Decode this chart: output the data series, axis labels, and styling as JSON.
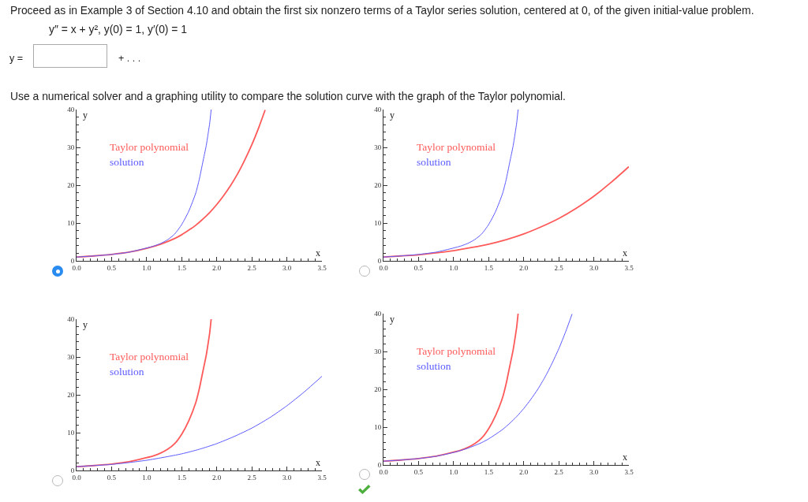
{
  "chart_data": [
    {
      "type": "other",
      "title": "Proceed as in Example 3 of Section 4.10 and obtain the first six nonzero terms of a Taylor series solution, centered at 0, of the given initial-value problem.",
      "annotations": [
        "y″ = x + y², y(0) = 1, y′(0) = 1",
        "y =",
        "+ . . .",
        "Use a numerical solver and a graphing utility to compare the solution curve with the graph of the Taylor polynomial."
      ]
    },
    {
      "type": "line",
      "xlabel": "x",
      "ylabel": "y",
      "legend": "top left",
      "xlim": [
        0,
        3.5
      ],
      "ylim": [
        0,
        40
      ],
      "xticks": [
        {
          "value": 0,
          "label": "0.0"
        },
        {
          "value": 0.1,
          "label": null
        },
        {
          "value": 0.2,
          "label": null
        },
        {
          "value": 0.3,
          "label": null
        },
        {
          "value": 0.4,
          "label": null
        },
        {
          "value": 0.5,
          "label": "0.5"
        },
        {
          "value": 0.6,
          "label": null
        },
        {
          "value": 0.7,
          "label": null
        },
        {
          "value": 0.8,
          "label": null
        },
        {
          "value": 0.9,
          "label": null
        },
        {
          "value": 1,
          "label": "1.0"
        },
        {
          "value": 1.1,
          "label": null
        },
        {
          "value": 1.2,
          "label": null
        },
        {
          "value": 1.3,
          "label": null
        },
        {
          "value": 1.4,
          "label": null
        },
        {
          "value": 1.5,
          "label": "1.5"
        },
        {
          "value": 1.6,
          "label": null
        },
        {
          "value": 1.7,
          "label": null
        },
        {
          "value": 1.8,
          "label": null
        },
        {
          "value": 1.9,
          "label": null
        },
        {
          "value": 2,
          "label": "2.0"
        },
        {
          "value": 2.1,
          "label": null
        },
        {
          "value": 2.2,
          "label": null
        },
        {
          "value": 2.3,
          "label": null
        },
        {
          "value": 2.4,
          "label": null
        },
        {
          "value": 2.5,
          "label": "2.5"
        },
        {
          "value": 2.6,
          "label": null
        },
        {
          "value": 2.7,
          "label": null
        },
        {
          "value": 2.8,
          "label": null
        },
        {
          "value": 2.9,
          "label": null
        },
        {
          "value": 3,
          "label": "3.0"
        },
        {
          "value": 3.1,
          "label": null
        },
        {
          "value": 3.2,
          "label": null
        },
        {
          "value": 3.3,
          "label": null
        },
        {
          "value": 3.4,
          "label": null
        },
        {
          "value": 3.5,
          "label": "3.5"
        }
      ],
      "yticks": [
        0,
        {
          "value": 2,
          "label": null
        },
        {
          "value": 4,
          "label": null
        },
        {
          "value": 6,
          "label": null
        },
        {
          "value": 8,
          "label": null
        },
        10,
        {
          "value": 12,
          "label": null
        },
        {
          "value": 14,
          "label": null
        },
        {
          "value": 16,
          "label": null
        },
        {
          "value": 18,
          "label": null
        },
        20,
        {
          "value": 22,
          "label": null
        },
        {
          "value": 24,
          "label": null
        },
        {
          "value": 26,
          "label": null
        },
        {
          "value": 28,
          "label": null
        },
        30,
        {
          "value": 32,
          "label": null
        },
        {
          "value": 34,
          "label": null
        },
        {
          "value": 36,
          "label": null
        },
        {
          "value": 38,
          "label": null
        },
        40
      ],
      "series": [
        {
          "name": "Taylor polynomial",
          "color": "#ff5a5a",
          "x": [
            0,
            0.25,
            0.5,
            0.75,
            1,
            1.2,
            1.4,
            1.5,
            1.6,
            1.7,
            1.8,
            1.9,
            2,
            2.1,
            2.2,
            2.3,
            2.4,
            2.5,
            2.6,
            2.69
          ],
          "values": [
            1,
            1.3,
            1.7,
            2.3,
            3.3,
            4.4,
            5.9,
            6.9,
            8.1,
            9.4,
            11,
            12.8,
            14.9,
            17.3,
            20,
            23.1,
            26.7,
            30.7,
            35.3,
            39.9
          ]
        },
        {
          "name": "solution",
          "color": "#5a5aff",
          "x": [
            0,
            0.25,
            0.5,
            0.75,
            1,
            1.1,
            1.2,
            1.3,
            1.4,
            1.5,
            1.6,
            1.7,
            1.75,
            1.8,
            1.85,
            1.88,
            1.9,
            1.92
          ],
          "values": [
            1,
            1.3,
            1.7,
            2.3,
            3.4,
            3.9,
            4.6,
            5.6,
            7.1,
            9.6,
            13.1,
            17.9,
            21.5,
            26,
            30.5,
            34,
            36.5,
            40
          ]
        }
      ]
    },
    {
      "type": "line",
      "xlabel": "x",
      "ylabel": "y",
      "legend": "top left",
      "xlim": [
        0,
        3.5
      ],
      "ylim": [
        0,
        40
      ],
      "xticks": [
        {
          "value": 0,
          "label": "0.0"
        },
        {
          "value": 0.1,
          "label": null
        },
        {
          "value": 0.2,
          "label": null
        },
        {
          "value": 0.3,
          "label": null
        },
        {
          "value": 0.4,
          "label": null
        },
        {
          "value": 0.5,
          "label": "0.5"
        },
        {
          "value": 0.6,
          "label": null
        },
        {
          "value": 0.7,
          "label": null
        },
        {
          "value": 0.8,
          "label": null
        },
        {
          "value": 0.9,
          "label": null
        },
        {
          "value": 1,
          "label": "1.0"
        },
        {
          "value": 1.1,
          "label": null
        },
        {
          "value": 1.2,
          "label": null
        },
        {
          "value": 1.3,
          "label": null
        },
        {
          "value": 1.4,
          "label": null
        },
        {
          "value": 1.5,
          "label": "1.5"
        },
        {
          "value": 1.6,
          "label": null
        },
        {
          "value": 1.7,
          "label": null
        },
        {
          "value": 1.8,
          "label": null
        },
        {
          "value": 1.9,
          "label": null
        },
        {
          "value": 2,
          "label": "2.0"
        },
        {
          "value": 2.1,
          "label": null
        },
        {
          "value": 2.2,
          "label": null
        },
        {
          "value": 2.3,
          "label": null
        },
        {
          "value": 2.4,
          "label": null
        },
        {
          "value": 2.5,
          "label": "2.5"
        },
        {
          "value": 2.6,
          "label": null
        },
        {
          "value": 2.7,
          "label": null
        },
        {
          "value": 2.8,
          "label": null
        },
        {
          "value": 2.9,
          "label": null
        },
        {
          "value": 3,
          "label": "3.0"
        },
        {
          "value": 3.1,
          "label": null
        },
        {
          "value": 3.2,
          "label": null
        },
        {
          "value": 3.3,
          "label": null
        },
        {
          "value": 3.4,
          "label": null
        },
        {
          "value": 3.5,
          "label": "3.5"
        }
      ],
      "yticks": [
        0,
        {
          "value": 2,
          "label": null
        },
        {
          "value": 4,
          "label": null
        },
        {
          "value": 6,
          "label": null
        },
        {
          "value": 8,
          "label": null
        },
        10,
        {
          "value": 12,
          "label": null
        },
        {
          "value": 14,
          "label": null
        },
        {
          "value": 16,
          "label": null
        },
        {
          "value": 18,
          "label": null
        },
        20,
        {
          "value": 22,
          "label": null
        },
        {
          "value": 24,
          "label": null
        },
        {
          "value": 26,
          "label": null
        },
        {
          "value": 28,
          "label": null
        },
        30,
        {
          "value": 32,
          "label": null
        },
        {
          "value": 34,
          "label": null
        },
        {
          "value": 36,
          "label": null
        },
        {
          "value": 38,
          "label": null
        },
        40
      ],
      "series": [
        {
          "name": "Taylor polynomial",
          "color": "#ff5a5a",
          "x": [
            0,
            0.25,
            0.5,
            0.75,
            1,
            1.25,
            1.5,
            1.75,
            2,
            2.25,
            2.5,
            2.75,
            3,
            3.25,
            3.5
          ],
          "values": [
            1,
            1.3,
            1.6,
            2.1,
            2.7,
            3.5,
            4.4,
            5.6,
            7.1,
            9,
            11.2,
            13.9,
            17.1,
            20.8,
            24.9
          ]
        },
        {
          "name": "solution",
          "color": "#5a5aff",
          "x": [
            0,
            0.25,
            0.5,
            0.75,
            1,
            1.1,
            1.2,
            1.3,
            1.4,
            1.5,
            1.6,
            1.7,
            1.75,
            1.8,
            1.85,
            1.88,
            1.9,
            1.92
          ],
          "values": [
            1,
            1.3,
            1.7,
            2.3,
            3.4,
            3.9,
            4.6,
            5.6,
            7.1,
            9.6,
            13.1,
            17.9,
            21.5,
            26,
            30.5,
            34,
            36.5,
            40
          ]
        }
      ]
    },
    {
      "type": "line",
      "xlabel": "x",
      "ylabel": "y",
      "legend": "top left",
      "xlim": [
        0,
        3.5
      ],
      "ylim": [
        0,
        40
      ],
      "xticks": [
        {
          "value": 0,
          "label": "0.0"
        },
        {
          "value": 0.1,
          "label": null
        },
        {
          "value": 0.2,
          "label": null
        },
        {
          "value": 0.3,
          "label": null
        },
        {
          "value": 0.4,
          "label": null
        },
        {
          "value": 0.5,
          "label": "0.5"
        },
        {
          "value": 0.6,
          "label": null
        },
        {
          "value": 0.7,
          "label": null
        },
        {
          "value": 0.8,
          "label": null
        },
        {
          "value": 0.9,
          "label": null
        },
        {
          "value": 1,
          "label": "1.0"
        },
        {
          "value": 1.1,
          "label": null
        },
        {
          "value": 1.2,
          "label": null
        },
        {
          "value": 1.3,
          "label": null
        },
        {
          "value": 1.4,
          "label": null
        },
        {
          "value": 1.5,
          "label": "1.5"
        },
        {
          "value": 1.6,
          "label": null
        },
        {
          "value": 1.7,
          "label": null
        },
        {
          "value": 1.8,
          "label": null
        },
        {
          "value": 1.9,
          "label": null
        },
        {
          "value": 2,
          "label": "2.0"
        },
        {
          "value": 2.1,
          "label": null
        },
        {
          "value": 2.2,
          "label": null
        },
        {
          "value": 2.3,
          "label": null
        },
        {
          "value": 2.4,
          "label": null
        },
        {
          "value": 2.5,
          "label": "2.5"
        },
        {
          "value": 2.6,
          "label": null
        },
        {
          "value": 2.7,
          "label": null
        },
        {
          "value": 2.8,
          "label": null
        },
        {
          "value": 2.9,
          "label": null
        },
        {
          "value": 3,
          "label": "3.0"
        },
        {
          "value": 3.1,
          "label": null
        },
        {
          "value": 3.2,
          "label": null
        },
        {
          "value": 3.3,
          "label": null
        },
        {
          "value": 3.4,
          "label": null
        },
        {
          "value": 3.5,
          "label": "3.5"
        }
      ],
      "yticks": [
        0,
        {
          "value": 2,
          "label": null
        },
        {
          "value": 4,
          "label": null
        },
        {
          "value": 6,
          "label": null
        },
        {
          "value": 8,
          "label": null
        },
        10,
        {
          "value": 12,
          "label": null
        },
        {
          "value": 14,
          "label": null
        },
        {
          "value": 16,
          "label": null
        },
        {
          "value": 18,
          "label": null
        },
        20,
        {
          "value": 22,
          "label": null
        },
        {
          "value": 24,
          "label": null
        },
        {
          "value": 26,
          "label": null
        },
        {
          "value": 28,
          "label": null
        },
        30,
        {
          "value": 32,
          "label": null
        },
        {
          "value": 34,
          "label": null
        },
        {
          "value": 36,
          "label": null
        },
        {
          "value": 38,
          "label": null
        },
        40
      ],
      "series": [
        {
          "name": "Taylor polynomial",
          "color": "#ff5a5a",
          "x": [
            0,
            0.25,
            0.5,
            0.75,
            1,
            1.1,
            1.2,
            1.3,
            1.4,
            1.5,
            1.6,
            1.7,
            1.75,
            1.8,
            1.85,
            1.88,
            1.9,
            1.92
          ],
          "values": [
            1,
            1.3,
            1.7,
            2.3,
            3.4,
            3.9,
            4.6,
            5.6,
            7.1,
            9.6,
            13.1,
            17.9,
            21.5,
            26,
            30.5,
            34,
            36.5,
            40
          ]
        },
        {
          "name": "solution",
          "color": "#5a5aff",
          "x": [
            0,
            0.25,
            0.5,
            0.75,
            1,
            1.25,
            1.5,
            1.75,
            2,
            2.25,
            2.5,
            2.75,
            3,
            3.25,
            3.5
          ],
          "values": [
            1,
            1.3,
            1.6,
            2.1,
            2.7,
            3.5,
            4.4,
            5.6,
            7.1,
            9,
            11.2,
            13.9,
            17.1,
            20.8,
            24.9
          ]
        }
      ]
    },
    {
      "type": "line",
      "xlabel": "x",
      "ylabel": "y",
      "legend": "top left",
      "xlim": [
        0,
        3.5
      ],
      "ylim": [
        0,
        40
      ],
      "xticks": [
        {
          "value": 0,
          "label": "0.0"
        },
        {
          "value": 0.1,
          "label": null
        },
        {
          "value": 0.2,
          "label": null
        },
        {
          "value": 0.3,
          "label": null
        },
        {
          "value": 0.4,
          "label": null
        },
        {
          "value": 0.5,
          "label": "0.5"
        },
        {
          "value": 0.6,
          "label": null
        },
        {
          "value": 0.7,
          "label": null
        },
        {
          "value": 0.8,
          "label": null
        },
        {
          "value": 0.9,
          "label": null
        },
        {
          "value": 1,
          "label": "1.0"
        },
        {
          "value": 1.1,
          "label": null
        },
        {
          "value": 1.2,
          "label": null
        },
        {
          "value": 1.3,
          "label": null
        },
        {
          "value": 1.4,
          "label": null
        },
        {
          "value": 1.5,
          "label": "1.5"
        },
        {
          "value": 1.6,
          "label": null
        },
        {
          "value": 1.7,
          "label": null
        },
        {
          "value": 1.8,
          "label": null
        },
        {
          "value": 1.9,
          "label": null
        },
        {
          "value": 2,
          "label": "2.0"
        },
        {
          "value": 2.1,
          "label": null
        },
        {
          "value": 2.2,
          "label": null
        },
        {
          "value": 2.3,
          "label": null
        },
        {
          "value": 2.4,
          "label": null
        },
        {
          "value": 2.5,
          "label": "2.5"
        },
        {
          "value": 2.6,
          "label": null
        },
        {
          "value": 2.7,
          "label": null
        },
        {
          "value": 2.8,
          "label": null
        },
        {
          "value": 2.9,
          "label": null
        },
        {
          "value": 3,
          "label": "3.0"
        },
        {
          "value": 3.1,
          "label": null
        },
        {
          "value": 3.2,
          "label": null
        },
        {
          "value": 3.3,
          "label": null
        },
        {
          "value": 3.4,
          "label": null
        },
        {
          "value": 3.5,
          "label": "3.5"
        }
      ],
      "yticks": [
        0,
        {
          "value": 2,
          "label": null
        },
        {
          "value": 4,
          "label": null
        },
        {
          "value": 6,
          "label": null
        },
        {
          "value": 8,
          "label": null
        },
        10,
        {
          "value": 12,
          "label": null
        },
        {
          "value": 14,
          "label": null
        },
        {
          "value": 16,
          "label": null
        },
        {
          "value": 18,
          "label": null
        },
        20,
        {
          "value": 22,
          "label": null
        },
        {
          "value": 24,
          "label": null
        },
        {
          "value": 26,
          "label": null
        },
        {
          "value": 28,
          "label": null
        },
        30,
        {
          "value": 32,
          "label": null
        },
        {
          "value": 34,
          "label": null
        },
        {
          "value": 36,
          "label": null
        },
        {
          "value": 38,
          "label": null
        },
        40
      ],
      "series": [
        {
          "name": "Taylor polynomial",
          "color": "#ff5a5a",
          "x": [
            0,
            0.25,
            0.5,
            0.75,
            1,
            1.1,
            1.2,
            1.3,
            1.4,
            1.5,
            1.6,
            1.7,
            1.75,
            1.8,
            1.85,
            1.88,
            1.9,
            1.92
          ],
          "values": [
            1,
            1.3,
            1.7,
            2.3,
            3.4,
            3.9,
            4.6,
            5.6,
            7.1,
            9.6,
            13.1,
            17.9,
            21.5,
            26,
            30.5,
            34,
            36.5,
            40
          ]
        },
        {
          "name": "solution",
          "color": "#5a5aff",
          "x": [
            0,
            0.25,
            0.5,
            0.75,
            1,
            1.2,
            1.4,
            1.5,
            1.6,
            1.7,
            1.8,
            1.9,
            2,
            2.1,
            2.2,
            2.3,
            2.4,
            2.5,
            2.6,
            2.69
          ],
          "values": [
            1,
            1.3,
            1.7,
            2.3,
            3.3,
            4.4,
            5.9,
            6.9,
            8.1,
            9.4,
            11,
            12.8,
            14.9,
            17.3,
            20,
            23.1,
            26.7,
            30.7,
            35.3,
            39.9
          ]
        }
      ]
    }
  ]
}
